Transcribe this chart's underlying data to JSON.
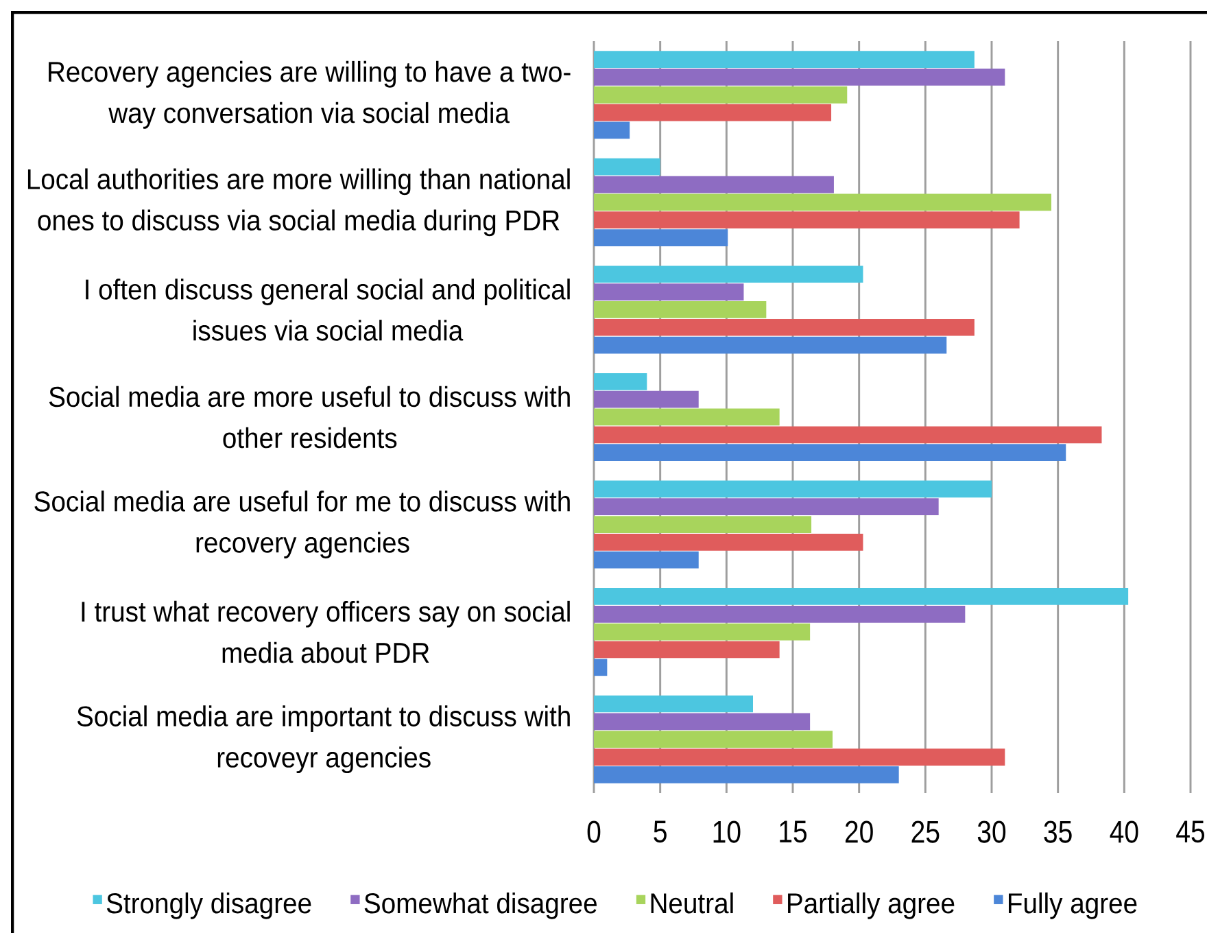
{
  "chart_data": {
    "type": "bar",
    "orientation": "horizontal",
    "categories": [
      "Recovery agencies are willing to have a two-way conversation via social media",
      "Local authorities are more willing than national ones to discuss via social media during PDR",
      "I often discuss general social and political issues via social media",
      "Social media are more useful to discuss with other residents",
      "Social media are useful for me to discuss with recovery agencies",
      "I trust what recovery officers say on social media about PDR",
      "Social media are important to discuss with recoveyr agencies"
    ],
    "series": [
      {
        "name": "Strongly disagree",
        "color": "#4cc6e0",
        "values": [
          28.7,
          5,
          20.3,
          4,
          30,
          40.3,
          12
        ]
      },
      {
        "name": "Somewhat disagree",
        "color": "#8e6cc2",
        "values": [
          31,
          18.1,
          11.3,
          7.9,
          26,
          28,
          16.3
        ]
      },
      {
        "name": "Neutral",
        "color": "#a8d45c",
        "values": [
          19.1,
          34.5,
          13,
          14,
          16.4,
          16.3,
          18
        ]
      },
      {
        "name": "Partially agree",
        "color": "#e05c5c",
        "values": [
          17.9,
          32.1,
          28.7,
          38.3,
          20.3,
          14,
          31
        ]
      },
      {
        "name": "Fully agree",
        "color": "#4c86d8",
        "values": [
          2.7,
          10.1,
          26.6,
          35.6,
          7.9,
          1,
          23
        ]
      }
    ],
    "xlim": [
      0,
      45
    ],
    "xticks": [
      0,
      5,
      10,
      15,
      20,
      25,
      30,
      35,
      40,
      45
    ],
    "grid": "x",
    "legend": "bottom"
  }
}
